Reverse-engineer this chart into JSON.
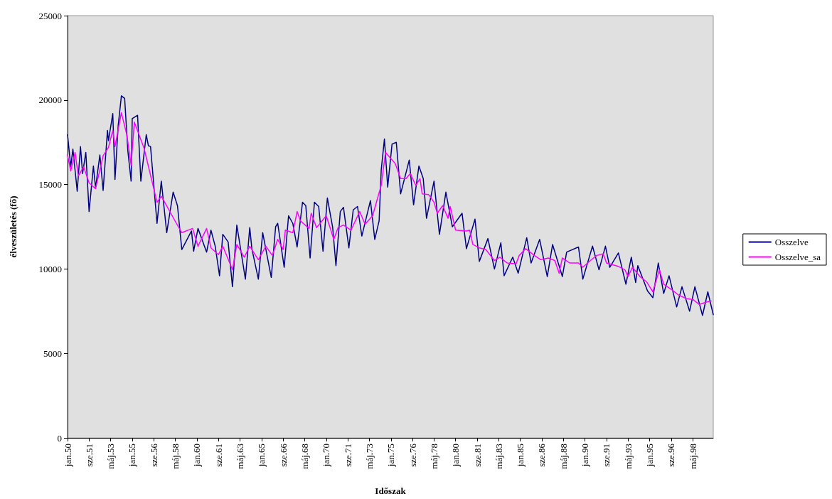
{
  "chart_data": {
    "type": "line",
    "xlabel": "Időszak",
    "ylabel": "élveszületés (fő)",
    "xlim": [
      "1950-01",
      "1999-12"
    ],
    "xticks": [
      {
        "value": "1950-01",
        "label": "jan.50"
      },
      {
        "value": "1951-09",
        "label": "sze.51"
      },
      {
        "value": "1953-05",
        "label": "máj.53"
      },
      {
        "value": "1955-01",
        "label": "jan.55"
      },
      {
        "value": "1956-09",
        "label": "sze.56"
      },
      {
        "value": "1958-05",
        "label": "máj.58"
      },
      {
        "value": "1960-01",
        "label": "jan.60"
      },
      {
        "value": "1961-09",
        "label": "sze.61"
      },
      {
        "value": "1963-05",
        "label": "máj.63"
      },
      {
        "value": "1965-01",
        "label": "jan.65"
      },
      {
        "value": "1966-09",
        "label": "sze.66"
      },
      {
        "value": "1968-05",
        "label": "máj.68"
      },
      {
        "value": "1970-01",
        "label": "jan.70"
      },
      {
        "value": "1971-09",
        "label": "sze.71"
      },
      {
        "value": "1973-05",
        "label": "máj.73"
      },
      {
        "value": "1975-01",
        "label": "jan.75"
      },
      {
        "value": "1976-09",
        "label": "sze.76"
      },
      {
        "value": "1978-05",
        "label": "máj.78"
      },
      {
        "value": "1980-01",
        "label": "jan.80"
      },
      {
        "value": "1981-09",
        "label": "sze.81"
      },
      {
        "value": "1983-05",
        "label": "máj.83"
      },
      {
        "value": "1985-01",
        "label": "jan.85"
      },
      {
        "value": "1986-09",
        "label": "sze.86"
      },
      {
        "value": "1988-05",
        "label": "máj.88"
      },
      {
        "value": "1990-01",
        "label": "jan.90"
      },
      {
        "value": "1991-09",
        "label": "sze.91"
      },
      {
        "value": "1993-05",
        "label": "máj.93"
      },
      {
        "value": "1995-01",
        "label": "jan.95"
      },
      {
        "value": "1996-09",
        "label": "sze.96"
      },
      {
        "value": "1998-05",
        "label": "máj.98"
      }
    ],
    "ylim": [
      0,
      25000
    ],
    "yticks": [
      0,
      5000,
      10000,
      15000,
      20000,
      25000
    ],
    "grid": false,
    "legend": "right",
    "marker": "none",
    "line_style": "solid",
    "series": [
      {
        "name": "Osszelve",
        "color": "#000080",
        "x": [
          "1950-01",
          "1950-04",
          "1950-06",
          "1950-10",
          "1951-01",
          "1951-03",
          "1951-06",
          "1951-09",
          "1952-01",
          "1952-03",
          "1952-07",
          "1952-10",
          "1953-02",
          "1953-03",
          "1953-07",
          "1953-09",
          "1953-12",
          "1954-03",
          "1954-06",
          "1954-09",
          "1954-12",
          "1955-01",
          "1955-06",
          "1955-09",
          "1956-02",
          "1956-04",
          "1956-06",
          "1956-12",
          "1957-04",
          "1957-09",
          "1958-03",
          "1958-07",
          "1958-11",
          "1959-08",
          "1959-10",
          "1960-02",
          "1960-10",
          "1961-02",
          "1961-06",
          "1961-10",
          "1962-01",
          "1962-06",
          "1962-10",
          "1963-02",
          "1963-10",
          "1964-02",
          "1964-04",
          "1964-10",
          "1965-02",
          "1965-10",
          "1966-02",
          "1966-04",
          "1966-10",
          "1967-02",
          "1967-06",
          "1967-10",
          "1968-03",
          "1968-06",
          "1968-10",
          "1969-02",
          "1969-06",
          "1969-10",
          "1970-02",
          "1970-07",
          "1970-10",
          "1971-02",
          "1971-05",
          "1971-10",
          "1972-02",
          "1972-06",
          "1972-10",
          "1973-06",
          "1973-10",
          "1974-02",
          "1974-04",
          "1974-07",
          "1974-10",
          "1975-02",
          "1975-06",
          "1975-10",
          "1976-06",
          "1976-10",
          "1977-03",
          "1977-07",
          "1977-10",
          "1978-05",
          "1978-10",
          "1979-04",
          "1979-10",
          "1980-07",
          "1980-11",
          "1981-07",
          "1981-11",
          "1982-07",
          "1983-01",
          "1983-07",
          "1983-10",
          "1984-06",
          "1984-11",
          "1985-07",
          "1985-11",
          "1986-07",
          "1987-02",
          "1987-07",
          "1988-04",
          "1988-08",
          "1989-07",
          "1989-11",
          "1990-08",
          "1991-02",
          "1991-08",
          "1991-12",
          "1992-08",
          "1993-03",
          "1993-08",
          "1993-12",
          "1994-02",
          "1994-11",
          "1995-04",
          "1995-09",
          "1996-02",
          "1996-07",
          "1997-02",
          "1997-07",
          "1998-02",
          "1998-07",
          "1999-02",
          "1999-07",
          "1999-12"
        ],
        "values": [
          17950,
          16050,
          17100,
          14600,
          17250,
          15650,
          16900,
          13400,
          16100,
          14800,
          16750,
          14650,
          18200,
          17600,
          19200,
          15300,
          18500,
          20250,
          20100,
          16950,
          15200,
          18900,
          19100,
          15200,
          17950,
          17300,
          17250,
          12700,
          15200,
          12150,
          14550,
          13750,
          11150,
          12250,
          11050,
          12400,
          11000,
          12300,
          11350,
          9600,
          12050,
          11600,
          8950,
          12600,
          9400,
          12450,
          11200,
          9400,
          12150,
          9500,
          12500,
          12700,
          10100,
          13150,
          12700,
          11300,
          13950,
          13750,
          10650,
          13950,
          13700,
          11050,
          14200,
          12450,
          10200,
          13400,
          13650,
          11250,
          13500,
          13700,
          11950,
          14050,
          11750,
          12850,
          15850,
          17700,
          14850,
          17400,
          17500,
          14450,
          16450,
          13800,
          16100,
          15350,
          13000,
          15200,
          12050,
          14550,
          12500,
          13300,
          11200,
          12950,
          10450,
          11800,
          10000,
          11550,
          9600,
          10700,
          9750,
          11850,
          10350,
          11750,
          9550,
          11450,
          9550,
          11000,
          11300,
          9400,
          11350,
          9950,
          11350,
          10100,
          10950,
          9100,
          10700,
          9200,
          10200,
          8700,
          8300,
          10350,
          8550,
          9600,
          7750,
          8950,
          7500,
          8950,
          7250,
          8650,
          7300
        ]
      },
      {
        "name": "Osszelve_sa",
        "color": "#ff00ff",
        "x": [
          "1950-01",
          "1950-04",
          "1950-08",
          "1950-11",
          "1951-04",
          "1951-09",
          "1952-03",
          "1952-10",
          "1953-03",
          "1953-07",
          "1953-09",
          "1954-03",
          "1954-08",
          "1954-12",
          "1955-03",
          "1955-12",
          "1956-06",
          "1956-12",
          "1957-04",
          "1957-08",
          "1958-06",
          "1958-11",
          "1959-09",
          "1960-02",
          "1960-10",
          "1961-02",
          "1961-09",
          "1962-01",
          "1962-10",
          "1963-02",
          "1963-09",
          "1964-02",
          "1964-10",
          "1965-05",
          "1965-11",
          "1966-04",
          "1966-09",
          "1966-11",
          "1967-06",
          "1967-10",
          "1968-01",
          "1968-09",
          "1968-11",
          "1969-04",
          "1970-01",
          "1970-08",
          "1970-12",
          "1971-05",
          "1971-12",
          "1972-08",
          "1973-01",
          "1973-08",
          "1974-04",
          "1974-08",
          "1975-05",
          "1975-10",
          "1976-03",
          "1976-07",
          "1976-12",
          "1977-04",
          "1977-06",
          "1977-12",
          "1978-05",
          "1978-08",
          "1979-01",
          "1979-06",
          "1979-08",
          "1980-01",
          "1980-11",
          "1981-02",
          "1981-05",
          "1981-11",
          "1982-05",
          "1983-01",
          "1983-06",
          "1984-01",
          "1984-09",
          "1984-12",
          "1985-06",
          "1986-02",
          "1986-08",
          "1987-03",
          "1987-09",
          "1988-01",
          "1988-04",
          "1988-11",
          "1989-07",
          "1989-11",
          "1990-06",
          "1990-12",
          "1991-06",
          "1991-09",
          "1992-08",
          "1993-02",
          "1993-05",
          "1993-09",
          "1994-04",
          "1994-10",
          "1995-04",
          "1995-10",
          "1996-02",
          "1996-10",
          "1997-04",
          "1997-11",
          "1998-05",
          "1998-11",
          "1999-06",
          "1999-10"
        ],
        "values": [
          16750,
          15800,
          16900,
          15500,
          16050,
          15100,
          14750,
          16700,
          17200,
          18200,
          17250,
          19250,
          17950,
          16150,
          18700,
          17150,
          15550,
          13950,
          14300,
          13850,
          12700,
          12150,
          12400,
          11350,
          12400,
          11250,
          10850,
          11350,
          9950,
          11450,
          10700,
          11350,
          10550,
          11350,
          10800,
          11750,
          11150,
          12300,
          12150,
          13400,
          12850,
          12400,
          13300,
          12450,
          13150,
          11750,
          12450,
          12600,
          12300,
          13400,
          12650,
          13150,
          14950,
          16900,
          16250,
          15350,
          15350,
          15650,
          14950,
          15350,
          14450,
          14400,
          13950,
          13300,
          13750,
          13000,
          13700,
          12300,
          12250,
          12300,
          11450,
          11250,
          11150,
          10500,
          10700,
          10350,
          10300,
          10800,
          11200,
          10800,
          10550,
          10650,
          10500,
          9750,
          10650,
          10350,
          10350,
          10100,
          10500,
          10800,
          10900,
          10350,
          10150,
          9950,
          9550,
          10100,
          9550,
          9250,
          8650,
          9950,
          9100,
          8750,
          8450,
          8250,
          8200,
          7900,
          8050,
          8100
        ]
      }
    ]
  }
}
